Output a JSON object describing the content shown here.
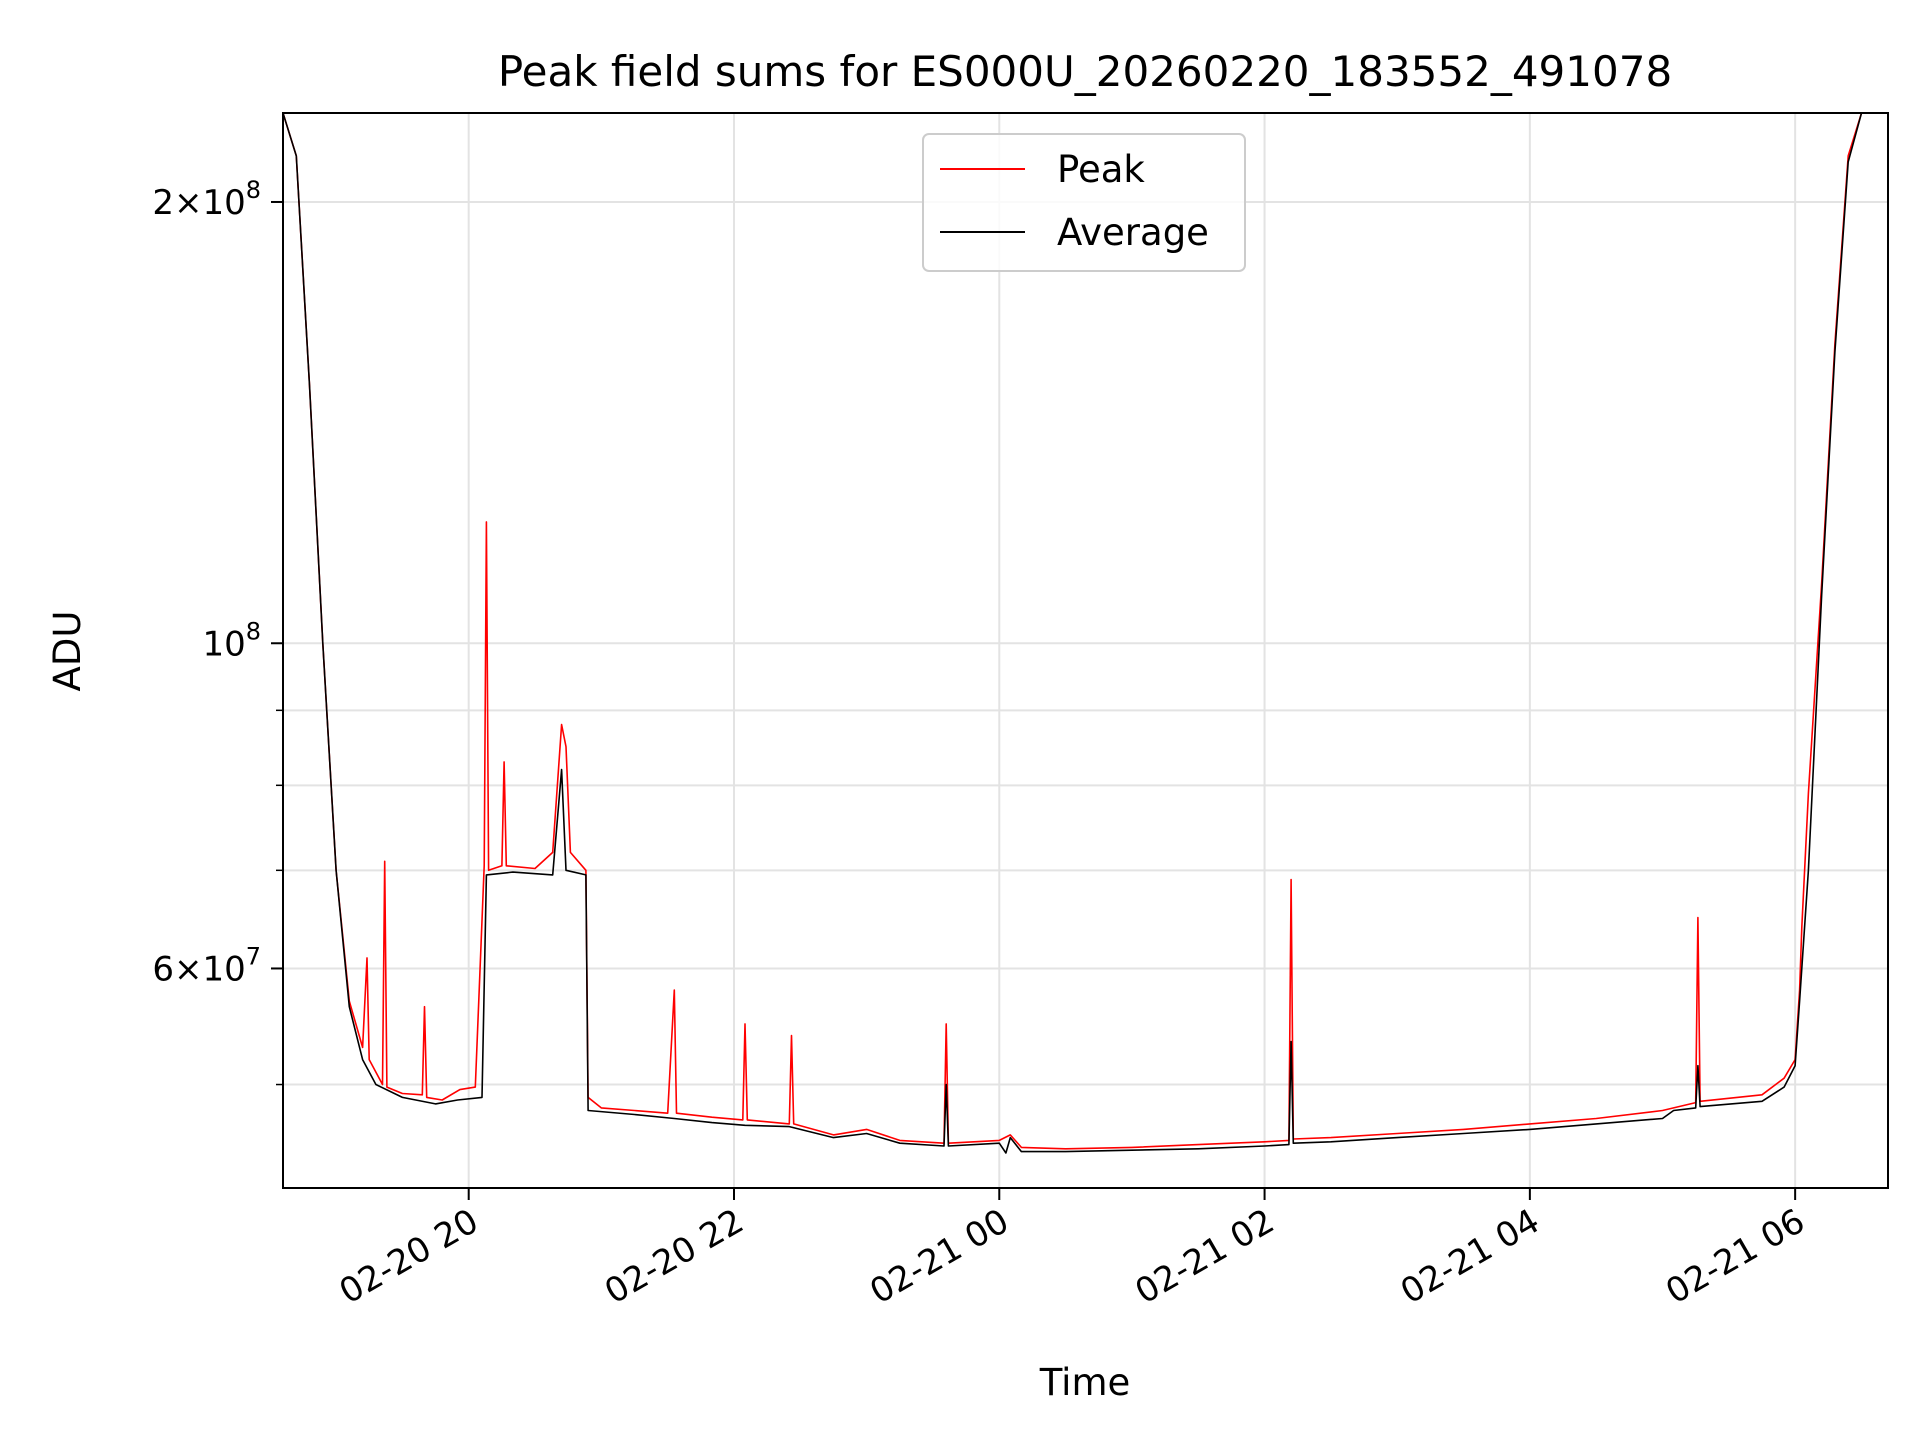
{
  "chart_data": {
    "type": "line",
    "title": "Peak field sums for ES000U_20260220_183552_491078",
    "xlabel": "Time",
    "ylabel": "ADU",
    "y_scale": "log",
    "xlim": [
      "2026-02-20 18:36",
      "2026-02-21 06:42"
    ],
    "ylim": [
      42500000,
      230000000
    ],
    "grid": true,
    "legend": {
      "placement": "upper center",
      "entries": [
        "Peak",
        "Average"
      ]
    },
    "x_ticks": [
      {
        "value": "2026-02-20 20:00",
        "label": "02-20 20"
      },
      {
        "value": "2026-02-20 22:00",
        "label": "02-20 22"
      },
      {
        "value": "2026-02-21 00:00",
        "label": "02-21 00"
      },
      {
        "value": "2026-02-21 02:00",
        "label": "02-21 02"
      },
      {
        "value": "2026-02-21 04:00",
        "label": "02-21 04"
      },
      {
        "value": "2026-02-21 06:00",
        "label": "02-21 06"
      }
    ],
    "y_ticks": [
      {
        "value": 200000000,
        "mantissa": "2",
        "exponent": "8"
      },
      {
        "value": 100000000,
        "mantissa": "",
        "exponent": "8"
      },
      {
        "value": 60000000,
        "mantissa": "6",
        "exponent": "7"
      }
    ],
    "y_minor_ticks": [
      50000000,
      70000000,
      80000000,
      90000000
    ],
    "series": [
      {
        "name": "Peak",
        "color": "#ff0000",
        "points": [
          [
            "2026-02-20 18:36",
            230000000
          ],
          [
            "2026-02-20 18:42",
            215000000
          ],
          [
            "2026-02-20 18:48",
            150000000
          ],
          [
            "2026-02-20 18:54",
            100000000
          ],
          [
            "2026-02-20 19:00",
            70000000
          ],
          [
            "2026-02-20 19:06",
            57000000
          ],
          [
            "2026-02-20 19:12",
            53000000
          ],
          [
            "2026-02-20 19:14",
            61000000
          ],
          [
            "2026-02-20 19:15",
            52000000
          ],
          [
            "2026-02-20 19:21",
            50000000
          ],
          [
            "2026-02-20 19:22",
            71000000
          ],
          [
            "2026-02-20 19:23",
            49800000
          ],
          [
            "2026-02-20 19:30",
            49300000
          ],
          [
            "2026-02-20 19:39",
            49200000
          ],
          [
            "2026-02-20 19:40",
            56500000
          ],
          [
            "2026-02-20 19:41",
            49000000
          ],
          [
            "2026-02-20 19:48",
            48800000
          ],
          [
            "2026-02-20 19:56",
            49600000
          ],
          [
            "2026-02-20 20:03",
            49800000
          ],
          [
            "2026-02-20 20:07",
            70500000
          ],
          [
            "2026-02-20 20:08",
            121000000
          ],
          [
            "2026-02-20 20:09",
            70000000
          ],
          [
            "2026-02-20 20:15",
            70500000
          ],
          [
            "2026-02-20 20:16",
            83000000
          ],
          [
            "2026-02-20 20:17",
            70500000
          ],
          [
            "2026-02-20 20:30",
            70200000
          ],
          [
            "2026-02-20 20:38",
            72000000
          ],
          [
            "2026-02-20 20:42",
            88000000
          ],
          [
            "2026-02-20 20:44",
            85000000
          ],
          [
            "2026-02-20 20:46",
            72000000
          ],
          [
            "2026-02-20 20:53",
            70000000
          ],
          [
            "2026-02-20 20:54",
            49000000
          ],
          [
            "2026-02-20 21:00",
            48200000
          ],
          [
            "2026-02-20 21:15",
            48000000
          ],
          [
            "2026-02-20 21:30",
            47800000
          ],
          [
            "2026-02-20 21:33",
            58000000
          ],
          [
            "2026-02-20 21:34",
            47800000
          ],
          [
            "2026-02-20 21:50",
            47500000
          ],
          [
            "2026-02-20 22:04",
            47300000
          ],
          [
            "2026-02-20 22:05",
            55000000
          ],
          [
            "2026-02-20 22:06",
            47300000
          ],
          [
            "2026-02-20 22:25",
            47000000
          ],
          [
            "2026-02-20 22:26",
            54000000
          ],
          [
            "2026-02-20 22:27",
            47000000
          ],
          [
            "2026-02-20 22:45",
            46200000
          ],
          [
            "2026-02-20 23:00",
            46600000
          ],
          [
            "2026-02-20 23:15",
            45800000
          ],
          [
            "2026-02-20 23:35",
            45600000
          ],
          [
            "2026-02-20 23:36",
            55000000
          ],
          [
            "2026-02-20 23:37",
            45600000
          ],
          [
            "2026-02-21 00:00",
            45800000
          ],
          [
            "2026-02-21 00:05",
            46200000
          ],
          [
            "2026-02-21 00:10",
            45300000
          ],
          [
            "2026-02-21 00:30",
            45200000
          ],
          [
            "2026-02-21 01:00",
            45300000
          ],
          [
            "2026-02-21 01:30",
            45500000
          ],
          [
            "2026-02-21 02:00",
            45700000
          ],
          [
            "2026-02-21 02:11",
            45800000
          ],
          [
            "2026-02-21 02:12",
            69000000
          ],
          [
            "2026-02-21 02:13",
            45900000
          ],
          [
            "2026-02-21 02:30",
            46000000
          ],
          [
            "2026-02-21 03:00",
            46300000
          ],
          [
            "2026-02-21 03:30",
            46600000
          ],
          [
            "2026-02-21 04:00",
            47000000
          ],
          [
            "2026-02-21 04:30",
            47400000
          ],
          [
            "2026-02-21 05:00",
            48000000
          ],
          [
            "2026-02-21 05:15",
            48600000
          ],
          [
            "2026-02-21 05:16",
            65000000
          ],
          [
            "2026-02-21 05:17",
            48700000
          ],
          [
            "2026-02-21 05:45",
            49200000
          ],
          [
            "2026-02-21 05:55",
            50500000
          ],
          [
            "2026-02-21 06:00",
            52000000
          ],
          [
            "2026-02-21 06:02",
            58000000
          ],
          [
            "2026-02-21 06:03",
            64000000
          ],
          [
            "2026-02-21 06:06",
            79000000
          ],
          [
            "2026-02-21 06:12",
            110000000
          ],
          [
            "2026-02-21 06:18",
            160000000
          ],
          [
            "2026-02-21 06:24",
            215000000
          ],
          [
            "2026-02-21 06:30",
            230000000
          ],
          [
            "2026-02-21 06:42",
            230000000
          ]
        ]
      },
      {
        "name": "Average",
        "color": "#000000",
        "points": [
          [
            "2026-02-20 18:36",
            230000000
          ],
          [
            "2026-02-20 18:42",
            215000000
          ],
          [
            "2026-02-20 18:48",
            150000000
          ],
          [
            "2026-02-20 18:54",
            100000000
          ],
          [
            "2026-02-20 19:00",
            70000000
          ],
          [
            "2026-02-20 19:06",
            56500000
          ],
          [
            "2026-02-20 19:12",
            52000000
          ],
          [
            "2026-02-20 19:18",
            50000000
          ],
          [
            "2026-02-20 19:30",
            49000000
          ],
          [
            "2026-02-20 19:45",
            48500000
          ],
          [
            "2026-02-20 19:55",
            48800000
          ],
          [
            "2026-02-20 20:06",
            49000000
          ],
          [
            "2026-02-20 20:08",
            69500000
          ],
          [
            "2026-02-20 20:20",
            69800000
          ],
          [
            "2026-02-20 20:38",
            69500000
          ],
          [
            "2026-02-20 20:42",
            82000000
          ],
          [
            "2026-02-20 20:44",
            70000000
          ],
          [
            "2026-02-20 20:53",
            69500000
          ],
          [
            "2026-02-20 20:54",
            48000000
          ],
          [
            "2026-02-20 21:15",
            47700000
          ],
          [
            "2026-02-20 21:33",
            47400000
          ],
          [
            "2026-02-20 21:50",
            47100000
          ],
          [
            "2026-02-20 22:05",
            46900000
          ],
          [
            "2026-02-20 22:25",
            46800000
          ],
          [
            "2026-02-20 22:45",
            46000000
          ],
          [
            "2026-02-20 23:00",
            46300000
          ],
          [
            "2026-02-20 23:15",
            45600000
          ],
          [
            "2026-02-20 23:35",
            45400000
          ],
          [
            "2026-02-20 23:36",
            50000000
          ],
          [
            "2026-02-20 23:37",
            45400000
          ],
          [
            "2026-02-21 00:00",
            45600000
          ],
          [
            "2026-02-21 00:03",
            44900000
          ],
          [
            "2026-02-21 00:05",
            46000000
          ],
          [
            "2026-02-21 00:10",
            45000000
          ],
          [
            "2026-02-21 00:30",
            45000000
          ],
          [
            "2026-02-21 01:00",
            45100000
          ],
          [
            "2026-02-21 01:30",
            45200000
          ],
          [
            "2026-02-21 02:00",
            45400000
          ],
          [
            "2026-02-21 02:11",
            45500000
          ],
          [
            "2026-02-21 02:12",
            53500000
          ],
          [
            "2026-02-21 02:13",
            45600000
          ],
          [
            "2026-02-21 02:30",
            45700000
          ],
          [
            "2026-02-21 03:00",
            46000000
          ],
          [
            "2026-02-21 03:30",
            46300000
          ],
          [
            "2026-02-21 04:00",
            46600000
          ],
          [
            "2026-02-21 04:30",
            47000000
          ],
          [
            "2026-02-21 05:00",
            47400000
          ],
          [
            "2026-02-21 05:05",
            48000000
          ],
          [
            "2026-02-21 05:15",
            48200000
          ],
          [
            "2026-02-21 05:16",
            51500000
          ],
          [
            "2026-02-21 05:17",
            48300000
          ],
          [
            "2026-02-21 05:45",
            48700000
          ],
          [
            "2026-02-21 05:55",
            49800000
          ],
          [
            "2026-02-21 06:00",
            51500000
          ],
          [
            "2026-02-21 06:02",
            57000000
          ],
          [
            "2026-02-21 06:06",
            70000000
          ],
          [
            "2026-02-21 06:12",
            108000000
          ],
          [
            "2026-02-21 06:18",
            158000000
          ],
          [
            "2026-02-21 06:24",
            213000000
          ],
          [
            "2026-02-21 06:30",
            230000000
          ],
          [
            "2026-02-21 06:42",
            230000000
          ]
        ]
      }
    ]
  }
}
